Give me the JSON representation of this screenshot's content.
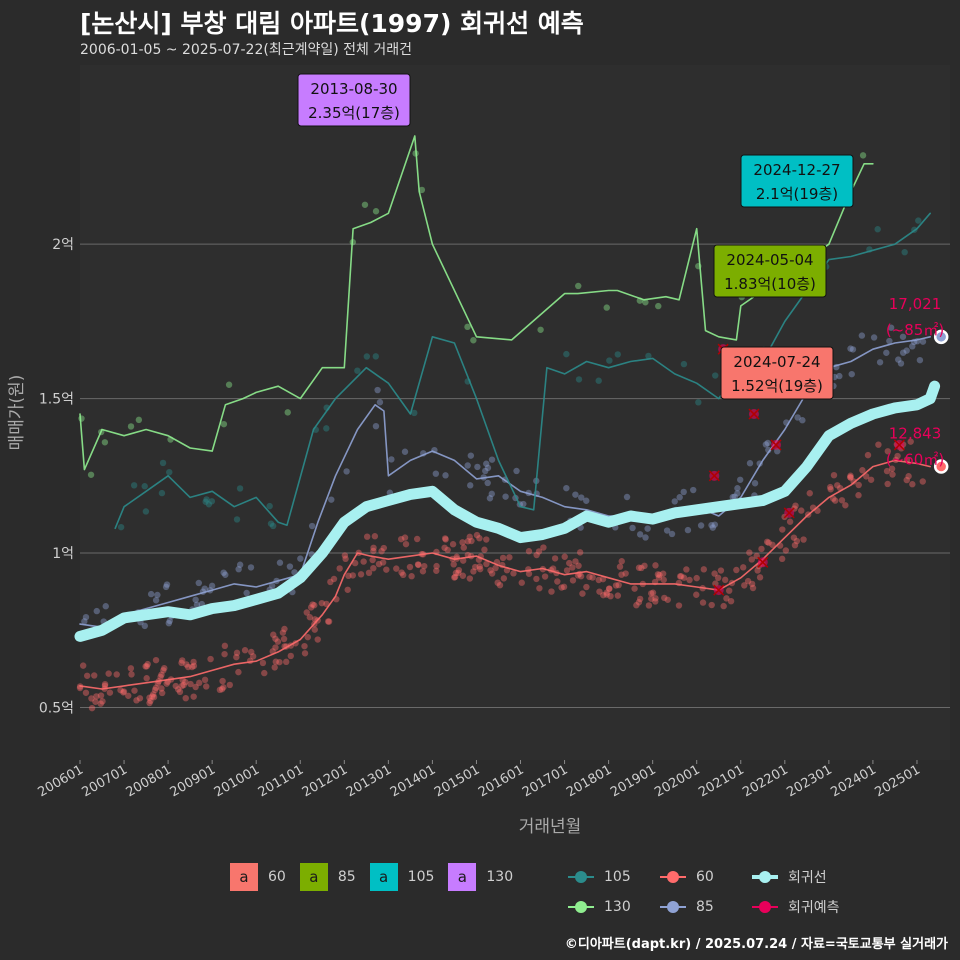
{
  "title": "[논산시] 부창 대림 아파트(1997) 회귀선 예측",
  "subtitle": "2006-01-05 ~ 2025-07-22(최근계약일) 전체 거래건",
  "footer": "©디아파트(dapt.kr) / 2025.07.24 / 자료=국토교통부 실거래가",
  "colors": {
    "bg": "#2b2b2b",
    "s60": "#f8766d",
    "s85": "#7cae00",
    "s105": "#00bfc4",
    "s130": "#c77cff",
    "line60": "#ff6b6b",
    "line85": "#8fa2d4",
    "line105": "#2b8c8c",
    "line130": "#90ee90",
    "regression": "#a8f0f0",
    "forecast": "#e8005a"
  },
  "legend_label_keys": [
    {
      "key": "a",
      "label": "60",
      "color": "#f8766d"
    },
    {
      "key": "a",
      "label": "85",
      "color": "#7cae00"
    },
    {
      "key": "a",
      "label": "105",
      "color": "#00bfc4"
    },
    {
      "key": "a",
      "label": "130",
      "color": "#c77cff"
    }
  ],
  "legend_lines": [
    {
      "label": "105",
      "color": "#2b8c8c",
      "kind": "series"
    },
    {
      "label": "60",
      "color": "#ff6b6b",
      "kind": "series"
    },
    {
      "label": "회귀선",
      "color": "#a8f0f0",
      "kind": "regression"
    },
    {
      "label": "130",
      "color": "#90ee90",
      "kind": "series"
    },
    {
      "label": "85",
      "color": "#8fa2d4",
      "kind": "series"
    },
    {
      "label": "회귀예측",
      "color": "#e8005a",
      "kind": "forecast"
    }
  ],
  "chart_data": {
    "type": "line",
    "xlabel": "거래년월",
    "ylabel": "매매가(원)",
    "x_ticks": [
      "200601",
      "200701",
      "200801",
      "200901",
      "201001",
      "201101",
      "201201",
      "201301",
      "201401",
      "201501",
      "201601",
      "201701",
      "201801",
      "201901",
      "202001",
      "202101",
      "202201",
      "202301",
      "202401",
      "202501"
    ],
    "xlim": [
      2006.0,
      2025.75
    ],
    "y_ticks": [
      {
        "v": 0.5,
        "label": "0.5억"
      },
      {
        "v": 1.0,
        "label": "1억"
      },
      {
        "v": 1.5,
        "label": "1.5억"
      },
      {
        "v": 2.0,
        "label": "2억"
      }
    ],
    "ylim": [
      0.33,
      2.58
    ],
    "grid": true,
    "series": [
      {
        "name": "60",
        "color": "#ff6b6b",
        "points": [
          [
            2006.0,
            0.57
          ],
          [
            2006.5,
            0.56
          ],
          [
            2007.0,
            0.57
          ],
          [
            2007.5,
            0.58
          ],
          [
            2008.0,
            0.59
          ],
          [
            2008.5,
            0.6
          ],
          [
            2009.0,
            0.62
          ],
          [
            2009.5,
            0.64
          ],
          [
            2010.0,
            0.65
          ],
          [
            2010.5,
            0.68
          ],
          [
            2011.0,
            0.72
          ],
          [
            2011.5,
            0.8
          ],
          [
            2011.8,
            0.86
          ],
          [
            2012.0,
            0.93
          ],
          [
            2012.3,
            1.0
          ],
          [
            2012.6,
            0.99
          ],
          [
            2013.0,
            0.98
          ],
          [
            2013.5,
            0.99
          ],
          [
            2014.0,
            1.0
          ],
          [
            2014.5,
            0.98
          ],
          [
            2015.0,
            0.99
          ],
          [
            2015.5,
            0.96
          ],
          [
            2016.0,
            0.94
          ],
          [
            2016.5,
            0.95
          ],
          [
            2017.0,
            0.93
          ],
          [
            2017.5,
            0.94
          ],
          [
            2018.0,
            0.92
          ],
          [
            2018.5,
            0.9
          ],
          [
            2019.0,
            0.9
          ],
          [
            2019.5,
            0.9
          ],
          [
            2020.0,
            0.89
          ],
          [
            2020.5,
            0.88
          ],
          [
            2021.0,
            0.92
          ],
          [
            2021.5,
            0.98
          ],
          [
            2022.0,
            1.05
          ],
          [
            2022.5,
            1.12
          ],
          [
            2023.0,
            1.18
          ],
          [
            2023.5,
            1.22
          ],
          [
            2024.0,
            1.28
          ],
          [
            2024.5,
            1.3
          ],
          [
            2025.0,
            1.29
          ],
          [
            2025.3,
            1.28
          ]
        ]
      },
      {
        "name": "85",
        "color": "#8fa2d4",
        "points": [
          [
            2006.0,
            0.77
          ],
          [
            2006.5,
            0.76
          ],
          [
            2007.0,
            0.8
          ],
          [
            2007.5,
            0.82
          ],
          [
            2008.0,
            0.84
          ],
          [
            2008.5,
            0.86
          ],
          [
            2009.0,
            0.88
          ],
          [
            2009.5,
            0.9
          ],
          [
            2010.0,
            0.89
          ],
          [
            2010.5,
            0.91
          ],
          [
            2011.0,
            0.93
          ],
          [
            2011.4,
            1.1
          ],
          [
            2011.8,
            1.25
          ],
          [
            2012.3,
            1.4
          ],
          [
            2012.7,
            1.48
          ],
          [
            2012.9,
            1.46
          ],
          [
            2013.0,
            1.25
          ],
          [
            2013.5,
            1.3
          ],
          [
            2014.0,
            1.33
          ],
          [
            2014.5,
            1.3
          ],
          [
            2015.0,
            1.24
          ],
          [
            2015.5,
            1.25
          ],
          [
            2016.0,
            1.2
          ],
          [
            2016.5,
            1.18
          ],
          [
            2017.0,
            1.15
          ],
          [
            2017.5,
            1.14
          ],
          [
            2018.0,
            1.12
          ],
          [
            2018.5,
            1.12
          ],
          [
            2019.0,
            1.12
          ],
          [
            2019.5,
            1.13
          ],
          [
            2020.0,
            1.15
          ],
          [
            2020.5,
            1.12
          ],
          [
            2021.0,
            1.18
          ],
          [
            2021.5,
            1.3
          ],
          [
            2022.0,
            1.4
          ],
          [
            2022.5,
            1.52
          ],
          [
            2023.0,
            1.6
          ],
          [
            2023.5,
            1.62
          ],
          [
            2024.0,
            1.66
          ],
          [
            2024.5,
            1.68
          ],
          [
            2025.0,
            1.69
          ],
          [
            2025.3,
            1.7
          ]
        ]
      },
      {
        "name": "105",
        "color": "#2b8c8c",
        "points": [
          [
            2006.8,
            1.08
          ],
          [
            2007.0,
            1.15
          ],
          [
            2007.5,
            1.2
          ],
          [
            2008.0,
            1.25
          ],
          [
            2008.5,
            1.18
          ],
          [
            2009.0,
            1.2
          ],
          [
            2009.5,
            1.15
          ],
          [
            2010.0,
            1.18
          ],
          [
            2010.5,
            1.1
          ],
          [
            2010.7,
            1.09
          ],
          [
            2011.3,
            1.4
          ],
          [
            2011.8,
            1.5
          ],
          [
            2012.5,
            1.6
          ],
          [
            2013.0,
            1.55
          ],
          [
            2013.5,
            1.45
          ],
          [
            2014.0,
            1.7
          ],
          [
            2014.5,
            1.68
          ],
          [
            2015.0,
            1.5
          ],
          [
            2015.5,
            1.3
          ],
          [
            2016.0,
            1.15
          ],
          [
            2016.3,
            1.14
          ],
          [
            2016.6,
            1.6
          ],
          [
            2017.0,
            1.58
          ],
          [
            2017.5,
            1.62
          ],
          [
            2018.0,
            1.6
          ],
          [
            2018.5,
            1.62
          ],
          [
            2019.0,
            1.63
          ],
          [
            2019.5,
            1.58
          ],
          [
            2020.0,
            1.55
          ],
          [
            2020.5,
            1.5
          ],
          [
            2021.0,
            1.6
          ],
          [
            2021.5,
            1.62
          ],
          [
            2022.0,
            1.75
          ],
          [
            2022.5,
            1.85
          ],
          [
            2023.0,
            1.95
          ],
          [
            2023.5,
            1.96
          ],
          [
            2024.0,
            1.98
          ],
          [
            2024.5,
            2.0
          ],
          [
            2025.0,
            2.05
          ],
          [
            2025.3,
            2.1
          ]
        ]
      },
      {
        "name": "130",
        "color": "#90ee90",
        "points": [
          [
            2006.0,
            1.45
          ],
          [
            2006.1,
            1.27
          ],
          [
            2006.5,
            1.4
          ],
          [
            2007.0,
            1.38
          ],
          [
            2007.5,
            1.4
          ],
          [
            2008.0,
            1.38
          ],
          [
            2008.5,
            1.34
          ],
          [
            2009.0,
            1.33
          ],
          [
            2009.3,
            1.48
          ],
          [
            2009.7,
            1.5
          ],
          [
            2010.0,
            1.52
          ],
          [
            2010.5,
            1.54
          ],
          [
            2011.0,
            1.5
          ],
          [
            2011.5,
            1.6
          ],
          [
            2012.0,
            1.6
          ],
          [
            2012.2,
            2.05
          ],
          [
            2012.6,
            2.07
          ],
          [
            2013.0,
            2.1
          ],
          [
            2013.6,
            2.35
          ],
          [
            2013.7,
            2.17
          ],
          [
            2014.0,
            2.0
          ],
          [
            2015.0,
            1.7
          ],
          [
            2015.8,
            1.69
          ],
          [
            2017.0,
            1.84
          ],
          [
            2017.3,
            1.84
          ],
          [
            2018.0,
            1.85
          ],
          [
            2018.2,
            1.85
          ],
          [
            2018.8,
            1.82
          ],
          [
            2019.3,
            1.83
          ],
          [
            2019.6,
            1.82
          ],
          [
            2020.0,
            2.05
          ],
          [
            2020.2,
            1.72
          ],
          [
            2020.5,
            1.7
          ],
          [
            2020.9,
            1.69
          ],
          [
            2021.0,
            1.8
          ],
          [
            2021.5,
            1.85
          ],
          [
            2022.0,
            1.9
          ],
          [
            2023.0,
            2.0
          ],
          [
            2023.5,
            2.17
          ],
          [
            2023.8,
            2.26
          ],
          [
            2024.0,
            2.26
          ]
        ]
      },
      {
        "name": "회귀선",
        "color": "#a8f0f0",
        "points": [
          [
            2006.0,
            0.73
          ],
          [
            2006.5,
            0.75
          ],
          [
            2007.0,
            0.79
          ],
          [
            2007.5,
            0.8
          ],
          [
            2008.0,
            0.81
          ],
          [
            2008.5,
            0.8
          ],
          [
            2009.0,
            0.82
          ],
          [
            2009.5,
            0.83
          ],
          [
            2010.0,
            0.85
          ],
          [
            2010.5,
            0.87
          ],
          [
            2011.0,
            0.92
          ],
          [
            2011.5,
            1.0
          ],
          [
            2012.0,
            1.1
          ],
          [
            2012.5,
            1.15
          ],
          [
            2013.0,
            1.17
          ],
          [
            2013.5,
            1.19
          ],
          [
            2014.0,
            1.2
          ],
          [
            2014.5,
            1.14
          ],
          [
            2015.0,
            1.1
          ],
          [
            2015.5,
            1.08
          ],
          [
            2016.0,
            1.05
          ],
          [
            2016.5,
            1.06
          ],
          [
            2017.0,
            1.08
          ],
          [
            2017.5,
            1.12
          ],
          [
            2018.0,
            1.1
          ],
          [
            2018.5,
            1.12
          ],
          [
            2019.0,
            1.11
          ],
          [
            2019.5,
            1.13
          ],
          [
            2020.0,
            1.14
          ],
          [
            2020.5,
            1.15
          ],
          [
            2021.0,
            1.16
          ],
          [
            2021.5,
            1.17
          ],
          [
            2022.0,
            1.2
          ],
          [
            2022.5,
            1.28
          ],
          [
            2023.0,
            1.38
          ],
          [
            2023.5,
            1.42
          ],
          [
            2024.0,
            1.45
          ],
          [
            2024.5,
            1.47
          ],
          [
            2025.0,
            1.48
          ],
          [
            2025.3,
            1.5
          ],
          [
            2025.4,
            1.54
          ]
        ]
      }
    ],
    "forecast_points": [
      [
        2020.5,
        0.88
      ],
      [
        2020.4,
        1.25
      ],
      [
        2020.6,
        1.66
      ],
      [
        2021.3,
        1.45
      ],
      [
        2021.5,
        0.97
      ],
      [
        2022.1,
        1.13
      ],
      [
        2024.6,
        1.35
      ],
      [
        2021.8,
        1.35
      ]
    ],
    "endpoints": [
      {
        "series": "85",
        "x": 2025.55,
        "y": 1.7,
        "value_label": "17,021",
        "area_label": "(~85㎡)",
        "color": "#8fa2d4"
      },
      {
        "series": "60",
        "x": 2025.55,
        "y": 1.28,
        "value_label": "12,843",
        "area_label": "(~60㎡)",
        "color": "#ff6b6b"
      }
    ],
    "callouts": [
      {
        "date": "2013-08-30",
        "text": "2.35억(17층)",
        "x": 2013.66,
        "y": 2.35,
        "color": "#c77cff"
      },
      {
        "date": "2024-12-27",
        "text": "2.1억(19층)",
        "x": 2024.99,
        "y": 2.1,
        "color": "#00bfc4"
      },
      {
        "date": "2024-05-04",
        "text": "1.83억(10층)",
        "x": 2024.34,
        "y": 1.83,
        "color": "#7cae00"
      },
      {
        "date": "2024-07-24",
        "text": "1.52억(19층)",
        "x": 2024.56,
        "y": 1.52,
        "color": "#f8766d"
      }
    ]
  }
}
